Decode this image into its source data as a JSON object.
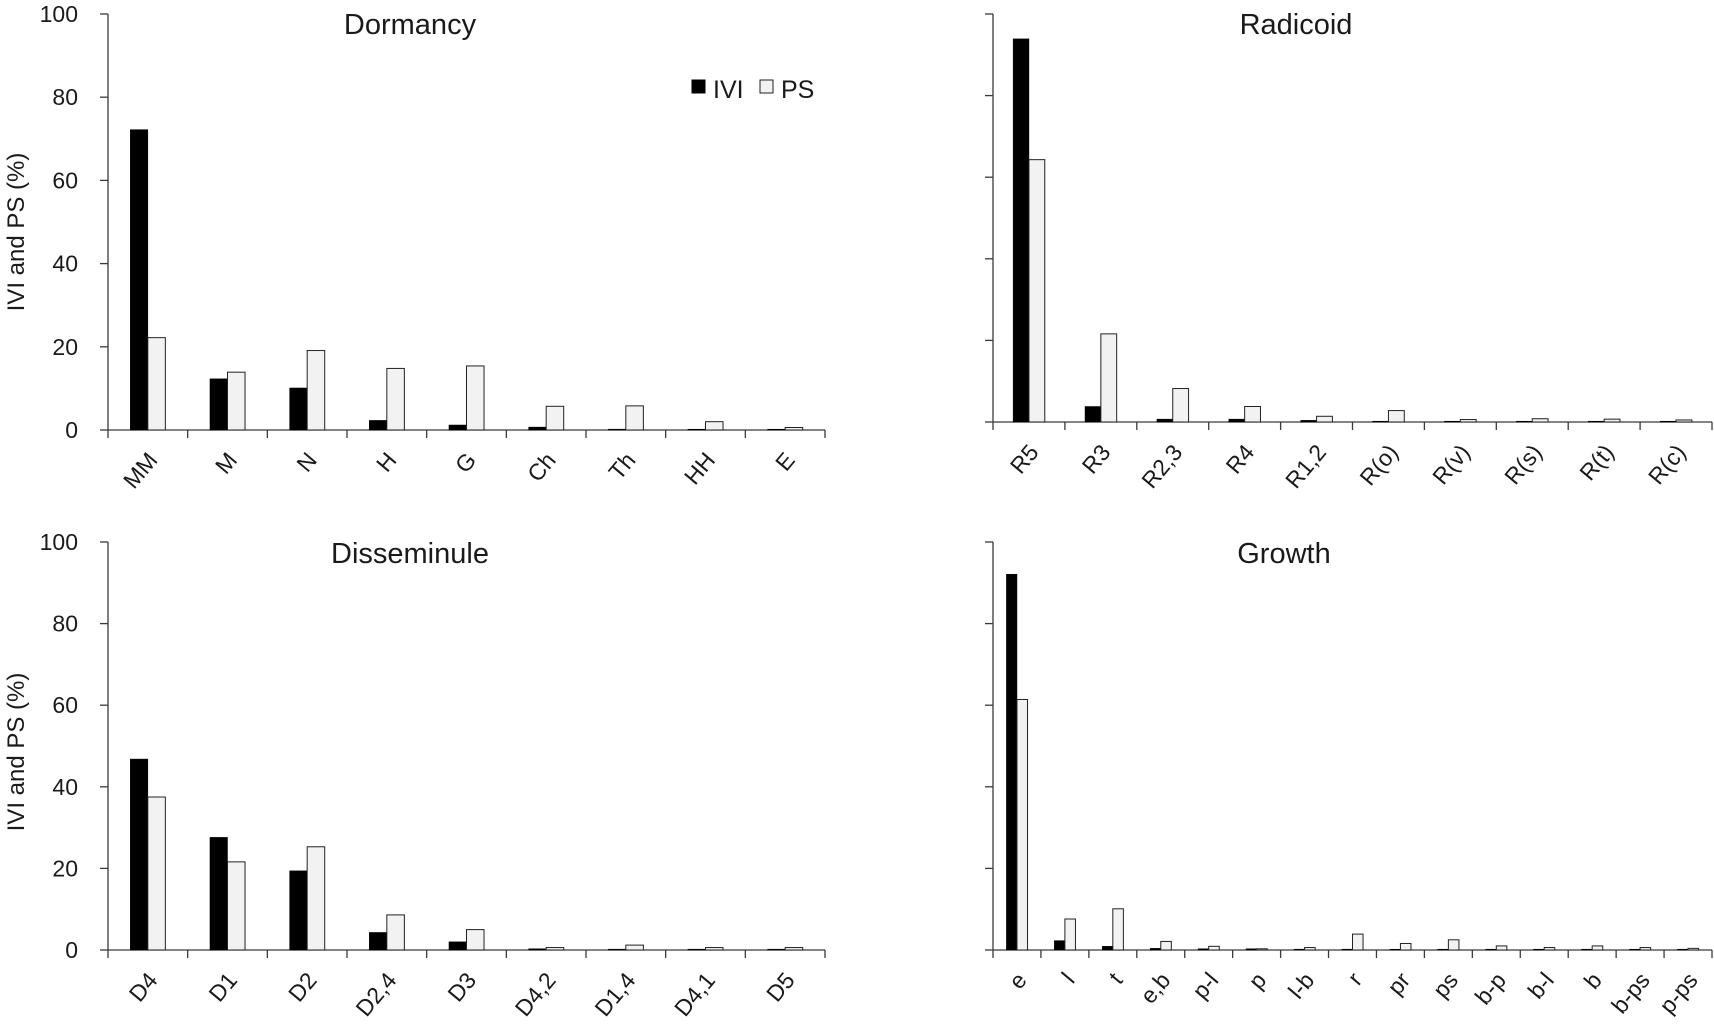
{
  "colors": {
    "ivi": "#000000",
    "ps": "#f2f2f2",
    "ps_stroke": "#222222",
    "axis": "#3a3a3a"
  },
  "chart_data": [
    {
      "type": "bar",
      "title": "Dormancy",
      "ylabel": "IVI and PS (%)",
      "ylim": [
        0,
        100
      ],
      "yticks": [
        "0",
        "20",
        "40",
        "60",
        "80",
        "100"
      ],
      "legend": {
        "placement": "top-right",
        "entries": [
          "IVI",
          "PS"
        ]
      },
      "categories": [
        "MM",
        "M",
        "N",
        "H",
        "G",
        "Ch",
        "Th",
        "HH",
        "E"
      ],
      "series": [
        {
          "name": "IVI",
          "values": [
            72.2,
            12.3,
            10.1,
            2.3,
            1.2,
            0.7,
            0.2,
            0.1,
            0.1
          ]
        },
        {
          "name": "PS",
          "values": [
            22.2,
            13.9,
            19.1,
            14.8,
            15.4,
            5.7,
            5.8,
            2.0,
            0.6
          ]
        }
      ]
    },
    {
      "type": "bar",
      "title": "Radicoid",
      "ylabel": "",
      "ylim": [
        0,
        100
      ],
      "yticks": [
        "",
        "",
        "",
        "",
        "",
        ""
      ],
      "categories": [
        "R5",
        "R3",
        "R2,3",
        "R4",
        "R1,2",
        "R(o)",
        "R(v)",
        "R(s)",
        "R(t)",
        "R(c)"
      ],
      "series": [
        {
          "name": "IVI",
          "values": [
            93.9,
            3.8,
            0.7,
            0.7,
            0.4,
            0.1,
            0.1,
            0.1,
            0.1,
            0.1
          ]
        },
        {
          "name": "PS",
          "values": [
            64.3,
            21.6,
            8.2,
            3.8,
            1.4,
            2.8,
            0.6,
            0.8,
            0.7,
            0.5
          ]
        }
      ]
    },
    {
      "type": "bar",
      "title": "Disseminule",
      "ylabel": "IVI and PS (%)",
      "ylim": [
        0,
        100
      ],
      "yticks": [
        "0",
        "20",
        "40",
        "60",
        "80",
        "100"
      ],
      "categories": [
        "D4",
        "D1",
        "D2",
        "D2,4",
        "D3",
        "D4,2",
        "D1,4",
        "D4,1",
        "D5"
      ],
      "series": [
        {
          "name": "IVI",
          "values": [
            46.8,
            27.6,
            19.4,
            4.3,
            2.0,
            0.3,
            0.2,
            0.2,
            0.2
          ]
        },
        {
          "name": "PS",
          "values": [
            37.5,
            21.6,
            25.3,
            8.6,
            5.0,
            0.6,
            1.2,
            0.6,
            0.6
          ]
        }
      ]
    },
    {
      "type": "bar",
      "title": "Growth",
      "ylabel": "",
      "ylim": [
        0,
        100
      ],
      "yticks": [
        "",
        "",
        "",
        "",
        "",
        ""
      ],
      "categories": [
        "e",
        "l",
        "t",
        "e,b",
        "p-l",
        "p",
        "l-b",
        "r",
        "pr",
        "ps",
        "b-p",
        "b-l",
        "b",
        "b-ps",
        "p-ps"
      ],
      "series": [
        {
          "name": "IVI",
          "values": [
            92.1,
            2.3,
            0.9,
            0.4,
            0.3,
            0.3,
            0.2,
            0.2,
            0.1,
            0.1,
            0.1,
            0.1,
            0.1,
            0.1,
            0.1
          ]
        },
        {
          "name": "PS",
          "values": [
            61.4,
            7.6,
            10.1,
            2.1,
            0.9,
            0.3,
            0.6,
            3.9,
            1.6,
            2.5,
            1.0,
            0.6,
            1.0,
            0.6,
            0.4
          ]
        }
      ]
    }
  ]
}
